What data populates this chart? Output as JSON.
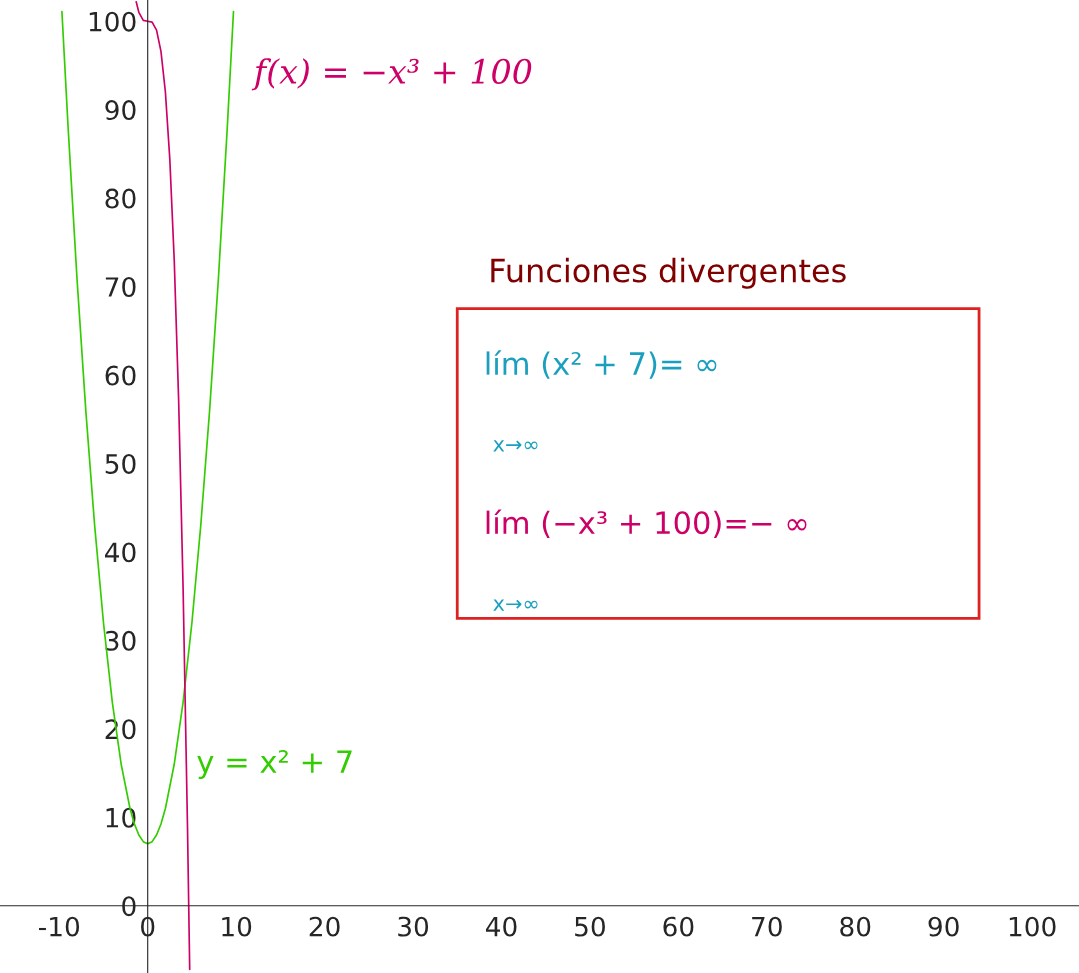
{
  "chart_data": {
    "type": "line",
    "title": "Funciones divergentes",
    "xlim": [
      -16.7,
      105.3
    ],
    "ylim": [
      -7.6,
      102.4
    ],
    "xticks": [
      -10,
      0,
      10,
      20,
      30,
      40,
      50,
      60,
      70,
      80,
      90,
      100
    ],
    "yticks": [
      0,
      10,
      20,
      30,
      40,
      50,
      60,
      70,
      80,
      90,
      100
    ],
    "grid": false,
    "legend": false,
    "series": [
      {
        "name": "y = x² + 7",
        "color": "#33cc00",
        "x": [
          -9.7,
          -9,
          -8,
          -7,
          -6,
          -5,
          -4,
          -3,
          -2,
          -1.5,
          -1,
          -0.5,
          0,
          0.5,
          1,
          1.5,
          2,
          3,
          4,
          5,
          6,
          7,
          8,
          9,
          9.7
        ],
        "values": [
          101.1,
          88,
          71,
          56,
          43,
          32,
          23,
          16,
          11,
          9.25,
          8,
          7.25,
          7,
          7.25,
          8,
          9.25,
          11,
          16,
          23,
          32,
          43,
          56,
          71,
          88,
          101.1
        ]
      },
      {
        "name": "f(x) = −x³ + 100",
        "color": "#cc0066",
        "x": [
          -1.3,
          -1,
          -0.5,
          0,
          0.5,
          1,
          1.5,
          2,
          2.5,
          3,
          3.5,
          4,
          4.5,
          4.75
        ],
        "values": [
          102.2,
          101,
          100.1,
          100,
          99.9,
          99,
          96.6,
          92,
          84.4,
          73,
          57.1,
          36,
          8.9,
          -7.2
        ]
      }
    ],
    "annotations": [
      "lím (x² + 7)= ∞",
      "x→∞",
      "lím (−x³ + 100)=− ∞",
      "x→∞"
    ]
  }
}
